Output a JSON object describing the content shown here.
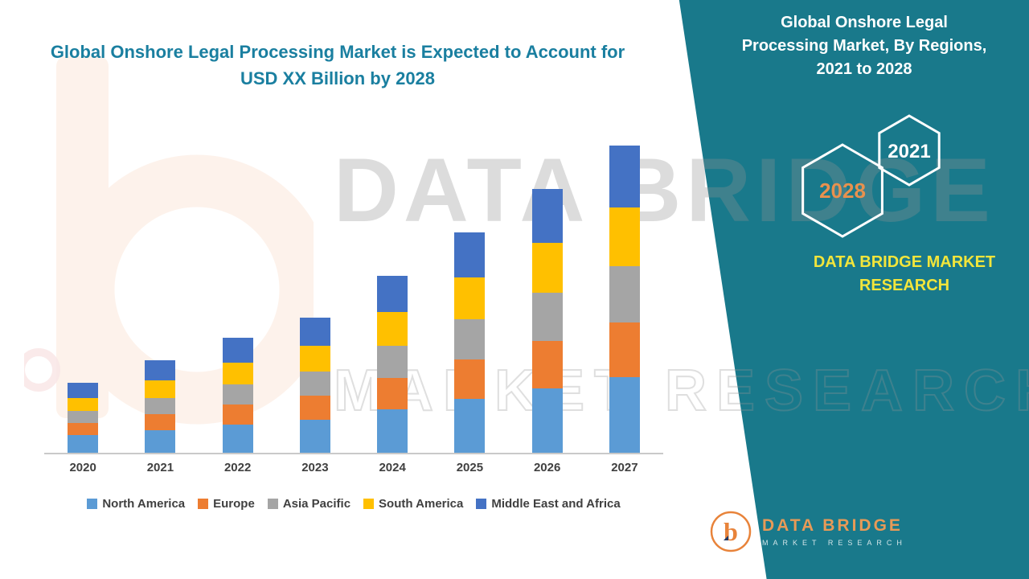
{
  "left_title": "Global Onshore Legal Processing Market is Expected to Account for USD XX Billion by 2028",
  "right_panel": {
    "title": "Global Onshore Legal Processing Market, By Regions,",
    "period": "2021 to 2028",
    "hexagon_left": "2028",
    "hexagon_right": "2021",
    "brand_text": "DATA BRIDGE MARKET RESEARCH"
  },
  "watermark": {
    "line1": "DATA BRIDGE",
    "line2": "MARKET RESEARCH"
  },
  "footer_logo": {
    "letter": "b",
    "name": "DATA BRIDGE",
    "tagline": "MARKET RESEARCH"
  },
  "colors": {
    "panel_teal": "#19798B",
    "title_teal": "#1A7FA0",
    "brand_yellow": "#F2E53B",
    "accent_orange": "#E8833A"
  },
  "chart_data": {
    "type": "bar",
    "stacked": true,
    "title": "Global Onshore Legal Processing Market is Expected to Account for USD XX Billion by 2028",
    "categories": [
      "2020",
      "2021",
      "2022",
      "2023",
      "2024",
      "2025",
      "2026",
      "2027"
    ],
    "series": [
      {
        "name": "North America",
        "color": "#5B9BD5",
        "values": [
          2.2,
          2.8,
          3.5,
          4.1,
          5.4,
          6.7,
          8.0,
          9.4
        ]
      },
      {
        "name": "Europe",
        "color": "#ED7D31",
        "values": [
          1.5,
          2.0,
          2.5,
          3.0,
          3.9,
          4.9,
          5.9,
          6.8
        ]
      },
      {
        "name": "Asia Pacific",
        "color": "#A5A5A5",
        "values": [
          1.5,
          2.0,
          2.5,
          3.0,
          4.0,
          5.0,
          6.0,
          7.0
        ]
      },
      {
        "name": "South America",
        "color": "#FFC000",
        "values": [
          1.6,
          2.2,
          2.7,
          3.2,
          4.2,
          5.2,
          6.2,
          7.3
        ]
      },
      {
        "name": "Middle East and Africa",
        "color": "#4472C4",
        "values": [
          1.9,
          2.5,
          3.1,
          3.5,
          4.5,
          5.6,
          6.7,
          7.7
        ]
      }
    ],
    "xlabel": "",
    "ylabel": "",
    "ylim": [
      0,
      40
    ],
    "grid": false,
    "legend_position": "bottom"
  }
}
